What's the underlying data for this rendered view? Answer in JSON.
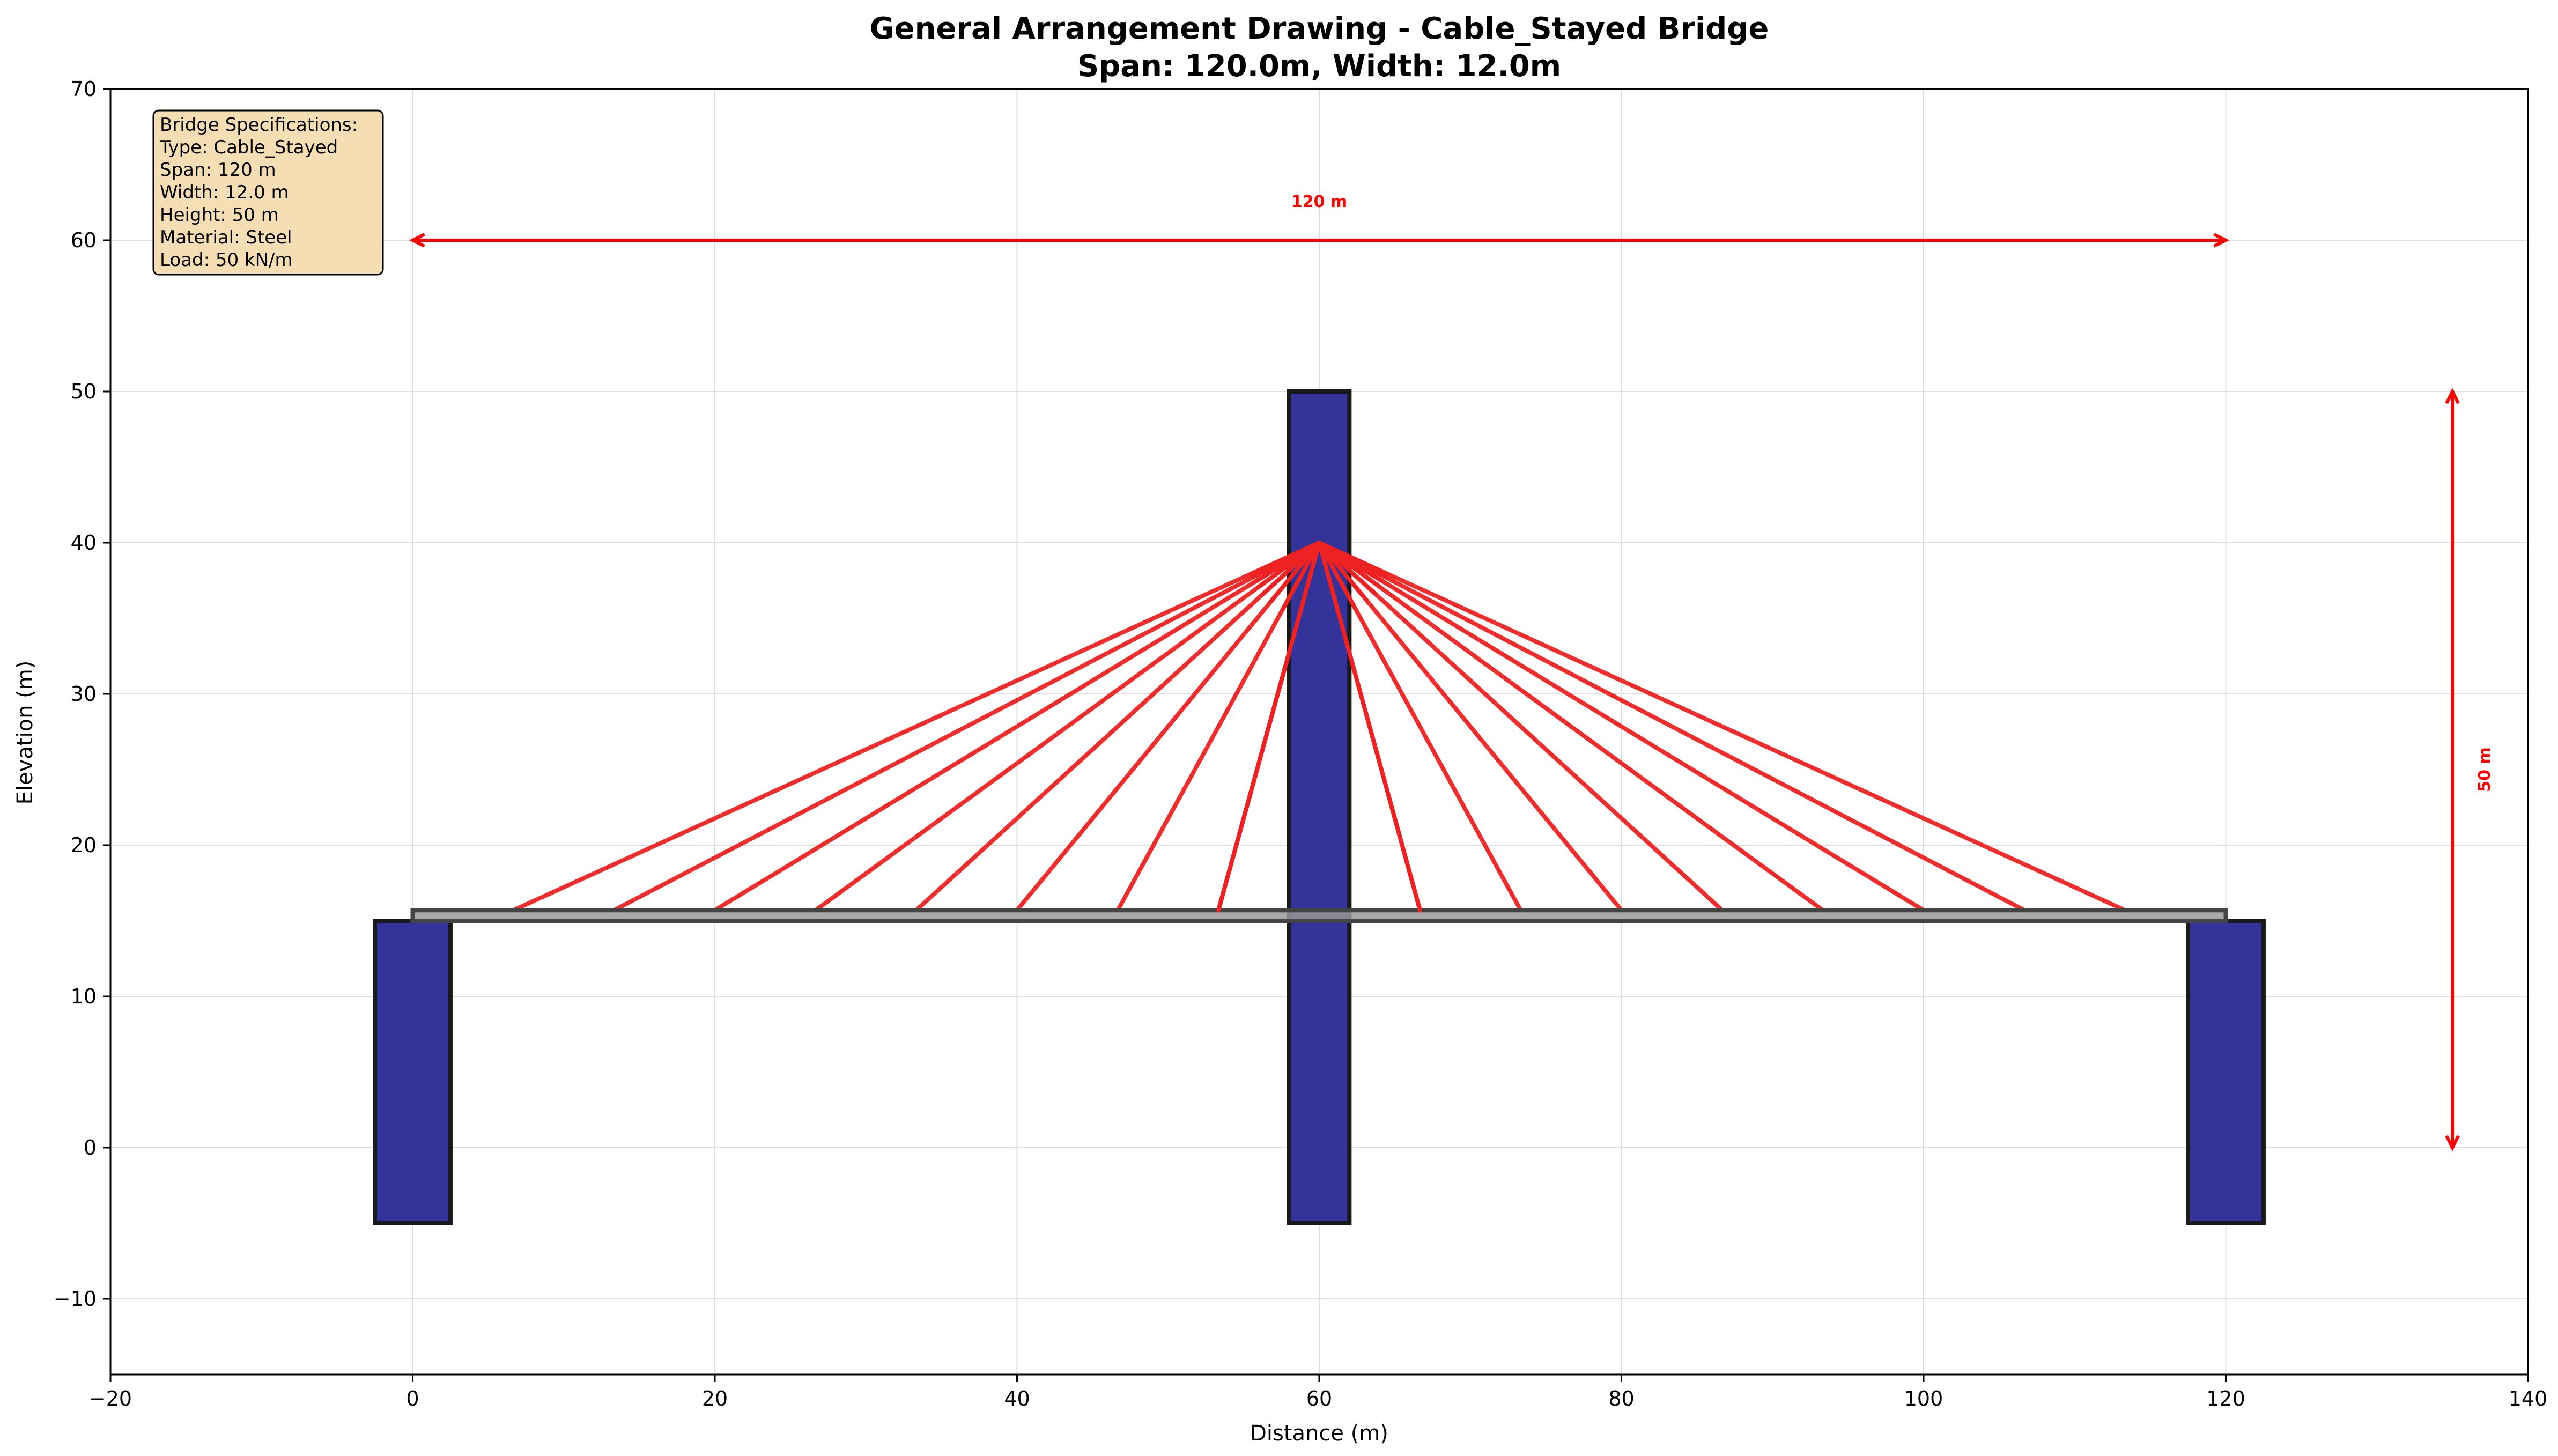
{
  "chart_data": {
    "type": "engineering-elevation-drawing",
    "title_line1": "General Arrangement Drawing - Cable_Stayed Bridge",
    "title_line2": "Span: 120.0m, Width: 12.0m",
    "xlabel": "Distance (m)",
    "ylabel": "Elevation (m)",
    "xlim": [
      -20,
      140
    ],
    "ylim": [
      -15,
      70
    ],
    "xticks": [
      -20,
      0,
      20,
      40,
      60,
      80,
      100,
      120,
      140
    ],
    "yticks": [
      -10,
      0,
      10,
      20,
      30,
      40,
      50,
      60,
      70
    ],
    "grid": true,
    "colors": {
      "pier": "#333399",
      "outline": "#1a1a1a",
      "deck": "#999999",
      "cable": "#ee2222",
      "dimension": "#ff0000",
      "specs_box": "#f5deb3"
    },
    "piers": [
      {
        "x_from": -2.5,
        "x_to": 2.5,
        "y_from": -5,
        "y_to": 15
      },
      {
        "x_from": 58,
        "x_to": 62,
        "y_from": -5,
        "y_to": 50
      },
      {
        "x_from": 117.5,
        "x_to": 122.5,
        "y_from": -5,
        "y_to": 15
      }
    ],
    "deck": {
      "x_from": 0,
      "x_to": 120,
      "y_from": 15,
      "y_to": 15.7
    },
    "cables": {
      "anchor": [
        60,
        40
      ],
      "deck_y": 15.7,
      "deck_x": [
        6.67,
        13.33,
        20,
        26.67,
        33.33,
        40,
        46.67,
        53.33,
        66.67,
        73.33,
        80,
        86.67,
        93.33,
        100,
        106.67,
        113.33
      ]
    },
    "span_dimension": {
      "x_from": 0,
      "x_to": 120,
      "y": 60,
      "label": "120 m"
    },
    "height_dimension": {
      "x": 135,
      "y_from": 0,
      "y_to": 50,
      "label": "50 m"
    },
    "specs": {
      "heading": "Bridge Specifications:",
      "lines": [
        "Type: Cable_Stayed",
        "Span: 120 m",
        "Width: 12.0 m",
        "Height: 50 m",
        "Material: Steel",
        "Load: 50 kN/m"
      ]
    }
  }
}
